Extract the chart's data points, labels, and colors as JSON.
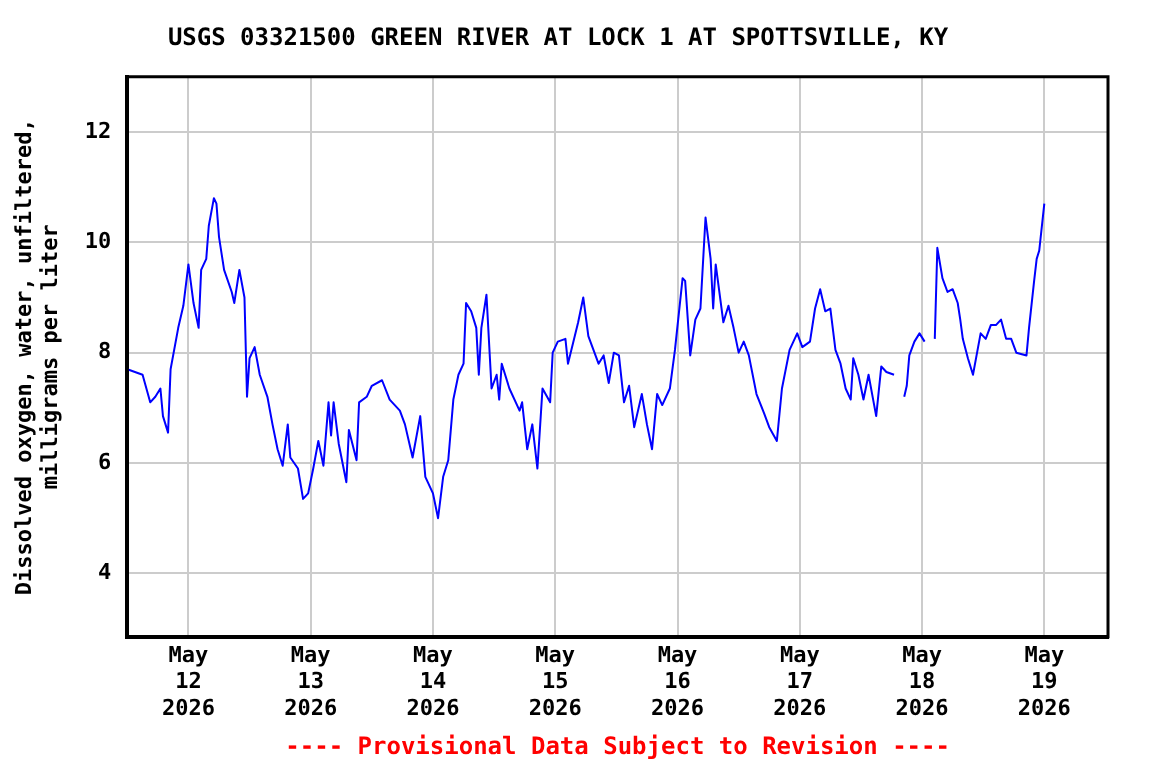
{
  "chart_data": {
    "type": "line",
    "title": "USGS 03321500 GREEN RIVER AT LOCK 1 AT SPOTTSVILLE, KY",
    "ylabel": "Dissolved oxygen, water, unfiltered,\nmilligrams per liter",
    "annotations": [
      "---- Provisional Data Subject to Revision ----"
    ],
    "x": [
      "2026-05-11T12:00",
      "2026-05-11T15:00",
      "2026-05-11T16:30",
      "2026-05-11T17:30",
      "2026-05-11T18:30",
      "2026-05-11T19:00",
      "2026-05-11T20:00",
      "2026-05-11T20:30",
      "2026-05-11T22:00",
      "2026-05-11T23:00",
      "2026-05-12T00:00",
      "2026-05-12T01:00",
      "2026-05-12T02:00",
      "2026-05-12T02:30",
      "2026-05-12T03:30",
      "2026-05-12T04:00",
      "2026-05-12T05:00",
      "2026-05-12T05:30",
      "2026-05-12T06:00",
      "2026-05-12T07:00",
      "2026-05-12T08:30",
      "2026-05-12T09:00",
      "2026-05-12T10:00",
      "2026-05-12T11:00",
      "2026-05-12T11:30",
      "2026-05-12T12:00",
      "2026-05-12T13:00",
      "2026-05-12T14:00",
      "2026-05-12T15:30",
      "2026-05-12T16:30",
      "2026-05-12T17:30",
      "2026-05-12T18:30",
      "2026-05-12T19:30",
      "2026-05-12T20:00",
      "2026-05-12T21:30",
      "2026-05-12T22:30",
      "2026-05-12T23:30",
      "2026-05-13T00:30",
      "2026-05-13T01:30",
      "2026-05-13T02:30",
      "2026-05-13T03:30",
      "2026-05-13T04:00",
      "2026-05-13T04:30",
      "2026-05-13T05:30",
      "2026-05-13T07:00",
      "2026-05-13T07:30",
      "2026-05-13T09:00",
      "2026-05-13T09:30",
      "2026-05-13T11:00",
      "2026-05-13T12:00",
      "2026-05-13T14:00",
      "2026-05-13T15:30",
      "2026-05-13T17:30",
      "2026-05-13T18:30",
      "2026-05-13T20:00",
      "2026-05-13T21:30",
      "2026-05-13T22:30",
      "2026-05-14T00:00",
      "2026-05-14T01:00",
      "2026-05-14T02:00",
      "2026-05-14T03:00",
      "2026-05-14T04:00",
      "2026-05-14T05:00",
      "2026-05-14T06:00",
      "2026-05-14T06:30",
      "2026-05-14T07:30",
      "2026-05-14T08:30",
      "2026-05-14T09:00",
      "2026-05-14T09:30",
      "2026-05-14T10:30",
      "2026-05-14T11:30",
      "2026-05-14T12:30",
      "2026-05-14T13:00",
      "2026-05-14T13:30",
      "2026-05-14T15:00",
      "2026-05-14T17:00",
      "2026-05-14T17:30",
      "2026-05-14T18:30",
      "2026-05-14T19:30",
      "2026-05-14T20:30",
      "2026-05-14T21:30",
      "2026-05-14T23:00",
      "2026-05-14T23:30",
      "2026-05-15T00:30",
      "2026-05-15T02:00",
      "2026-05-15T02:30",
      "2026-05-15T04:30",
      "2026-05-15T05:30",
      "2026-05-15T06:30",
      "2026-05-15T07:30",
      "2026-05-15T08:30",
      "2026-05-15T09:30",
      "2026-05-15T10:30",
      "2026-05-15T11:30",
      "2026-05-15T12:30",
      "2026-05-15T13:30",
      "2026-05-15T14:30",
      "2026-05-15T15:30",
      "2026-05-15T17:00",
      "2026-05-15T18:00",
      "2026-05-15T19:00",
      "2026-05-15T20:00",
      "2026-05-15T21:00",
      "2026-05-15T22:30",
      "2026-05-15T23:30",
      "2026-05-16T01:00",
      "2026-05-16T01:30",
      "2026-05-16T02:30",
      "2026-05-16T03:30",
      "2026-05-16T04:30",
      "2026-05-16T05:30",
      "2026-05-16T06:30",
      "2026-05-16T07:00",
      "2026-05-16T07:30",
      "2026-05-16T09:00",
      "2026-05-16T10:00",
      "2026-05-16T11:00",
      "2026-05-16T12:00",
      "2026-05-16T13:00",
      "2026-05-16T14:00",
      "2026-05-16T15:30",
      "2026-05-16T17:00",
      "2026-05-16T18:00",
      "2026-05-16T19:30",
      "2026-05-16T20:30",
      "2026-05-16T22:00",
      "2026-05-16T23:30",
      "2026-05-17T00:30",
      "2026-05-17T02:00",
      "2026-05-17T03:00",
      "2026-05-17T04:00",
      "2026-05-17T05:00",
      "2026-05-17T06:00",
      "2026-05-17T07:00",
      "2026-05-17T08:00",
      "2026-05-17T09:00",
      "2026-05-17T10:00",
      "2026-05-17T10:30",
      "2026-05-17T11:30",
      "2026-05-17T12:30",
      "2026-05-17T13:30",
      "2026-05-17T14:30",
      "2026-05-17T15:00",
      "2026-05-17T16:00",
      "2026-05-17T17:00",
      "2026-05-17T18:30",
      "2026-05-17T19:30",
      "2026-05-17T20:30",
      "2026-05-17T21:00",
      "2026-05-17T21:30",
      "2026-05-17T22:30",
      "2026-05-17T23:30",
      "2026-05-18T00:30",
      "2026-05-18T01:30",
      "2026-05-18T02:30",
      "2026-05-18T03:00",
      "2026-05-18T04:00",
      "2026-05-18T05:00",
      "2026-05-18T06:00",
      "2026-05-18T07:00",
      "2026-05-18T07:30",
      "2026-05-18T08:00",
      "2026-05-18T09:00",
      "2026-05-18T10:00",
      "2026-05-18T11:00",
      "2026-05-18T11:30",
      "2026-05-18T12:30",
      "2026-05-18T13:30",
      "2026-05-18T14:30",
      "2026-05-18T15:30",
      "2026-05-18T16:30",
      "2026-05-18T17:30",
      "2026-05-18T18:30",
      "2026-05-18T20:30",
      "2026-05-18T21:00",
      "2026-05-18T22:00",
      "2026-05-18T22:30",
      "2026-05-18T23:00",
      "2026-05-19T00:00"
    ],
    "series": [
      {
        "color": "#0000ff",
        "values": [
          7.7,
          7.6,
          7.1,
          7.2,
          7.35,
          6.85,
          6.55,
          7.7,
          8.45,
          8.85,
          9.6,
          8.9,
          8.45,
          9.5,
          9.7,
          10.3,
          10.8,
          10.7,
          10.1,
          9.5,
          9.1,
          8.9,
          9.5,
          9.0,
          7.2,
          7.9,
          8.1,
          7.6,
          7.2,
          6.7,
          6.25,
          5.95,
          6.7,
          6.1,
          5.9,
          5.35,
          5.45,
          5.9,
          6.4,
          5.95,
          7.1,
          6.5,
          7.1,
          6.35,
          5.65,
          6.6,
          6.05,
          7.1,
          7.2,
          7.4,
          7.5,
          7.15,
          6.95,
          6.7,
          6.1,
          6.85,
          5.75,
          5.45,
          5.0,
          5.75,
          6.05,
          7.15,
          7.6,
          7.8,
          8.9,
          8.75,
          8.45,
          7.6,
          8.45,
          9.05,
          7.35,
          7.6,
          7.15,
          7.8,
          7.35,
          6.95,
          7.1,
          6.25,
          6.7,
          5.9,
          7.35,
          7.1,
          8.0,
          8.2,
          8.25,
          7.8,
          8.55,
          9.0,
          8.3,
          8.05,
          7.8,
          7.95,
          7.45,
          8.0,
          7.95,
          7.1,
          7.4,
          6.65,
          7.25,
          6.7,
          6.25,
          7.25,
          7.05,
          7.35,
          8.05,
          9.35,
          9.3,
          7.95,
          8.6,
          8.8,
          10.45,
          9.7,
          8.8,
          9.6,
          8.55,
          8.85,
          8.45,
          8.0,
          8.2,
          7.95,
          7.25,
          6.9,
          6.65,
          6.4,
          7.35,
          8.05,
          8.35,
          8.1,
          8.2,
          8.8,
          9.15,
          8.75,
          8.8,
          8.05,
          7.8,
          7.35,
          7.15,
          7.9,
          7.6,
          7.15,
          7.6,
          7.1,
          6.85,
          7.75,
          7.65,
          7.6,
          null,
          7.2,
          7.4,
          7.95,
          8.2,
          8.35,
          8.2,
          null,
          8.25,
          9.9,
          9.35,
          9.1,
          9.15,
          8.9,
          8.6,
          8.25,
          7.9,
          7.6,
          8.1,
          8.35,
          8.25,
          8.5,
          8.5,
          8.6,
          8.25,
          8.25,
          8.0,
          7.95,
          8.45,
          9.3,
          9.7,
          9.85,
          10.7
        ]
      }
    ],
    "xlim": [
      "2026-05-11T12:00",
      "2026-05-19T12:30"
    ],
    "xticks": [
      {
        "value": "2026-05-12",
        "label": "May\n12\n2026"
      },
      {
        "value": "2026-05-13",
        "label": "May\n13\n2026"
      },
      {
        "value": "2026-05-14",
        "label": "May\n14\n2026"
      },
      {
        "value": "2026-05-15",
        "label": "May\n15\n2026"
      },
      {
        "value": "2026-05-16",
        "label": "May\n16\n2026"
      },
      {
        "value": "2026-05-17",
        "label": "May\n17\n2026"
      },
      {
        "value": "2026-05-18",
        "label": "May\n18\n2026"
      },
      {
        "value": "2026-05-19",
        "label": "May\n19\n2026"
      }
    ],
    "ylim": [
      2.85,
      13
    ],
    "yticks": [
      4,
      6,
      8,
      10,
      12
    ],
    "grid": true,
    "legend": false,
    "marker": "none",
    "line_style": "solid"
  }
}
